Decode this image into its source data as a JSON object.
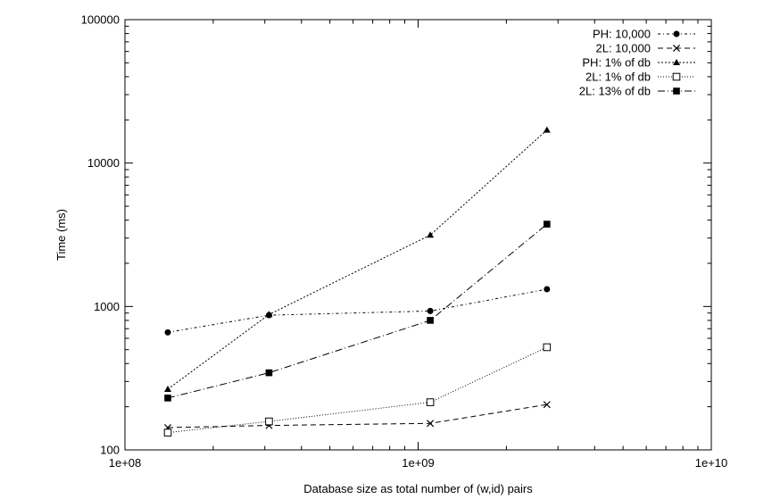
{
  "chart_data": {
    "type": "line",
    "title": "",
    "xlabel": "Database size as total number of (w,id) pairs",
    "ylabel": "Time (ms)",
    "xscale": "log",
    "yscale": "log",
    "xlim": [
      100000000,
      10000000000
    ],
    "ylim": [
      100,
      100000
    ],
    "grid": false,
    "legend_position": "top-right",
    "x_ticks": [
      {
        "value": 100000000,
        "label": "1e+08"
      },
      {
        "value": 1000000000,
        "label": "1e+09"
      },
      {
        "value": 10000000000,
        "label": "1e+10"
      }
    ],
    "y_ticks": [
      {
        "value": 100,
        "label": "100"
      },
      {
        "value": 1000,
        "label": "1000"
      },
      {
        "value": 10000,
        "label": "10000"
      },
      {
        "value": 100000,
        "label": "100000"
      }
    ],
    "x": [
      140000000,
      310000000,
      1100000000,
      2750000000
    ],
    "series": [
      {
        "name": "PH: 10,000",
        "values": [
          660,
          870,
          930,
          1320
        ],
        "marker": "circle",
        "dash": "3,3,1,3"
      },
      {
        "name": "2L: 10,000",
        "values": [
          143,
          148,
          153,
          207
        ],
        "marker": "x",
        "dash": "6,4"
      },
      {
        "name": "PH: 1% of db",
        "values": [
          265,
          880,
          3150,
          17000
        ],
        "marker": "triangle",
        "dash": "2,2"
      },
      {
        "name": "2L: 1% of db",
        "values": [
          132,
          158,
          215,
          520
        ],
        "marker": "open-square",
        "dash": "1,2"
      },
      {
        "name": "2L: 13% of db",
        "values": [
          230,
          345,
          800,
          3750
        ],
        "marker": "filled-square",
        "dash": "8,3,1,3"
      }
    ]
  }
}
